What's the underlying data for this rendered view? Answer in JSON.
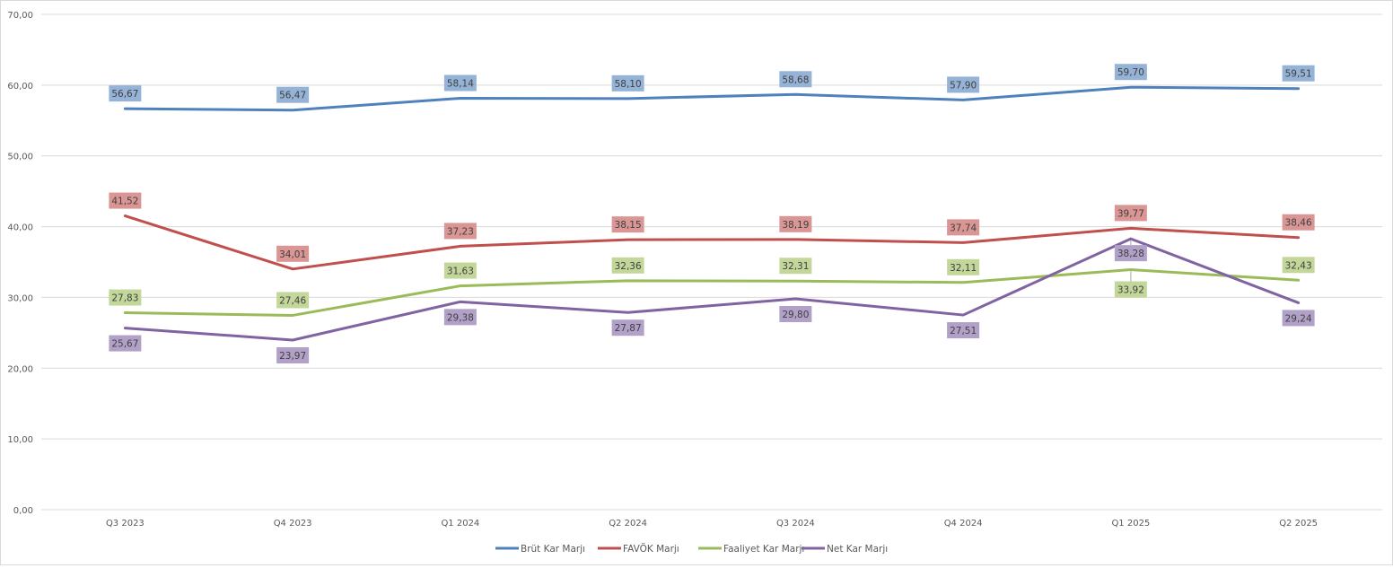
{
  "chart_data": {
    "type": "line",
    "title": "",
    "xlabel": "",
    "ylabel": "",
    "ylim": [
      0,
      70
    ],
    "yticks": [
      "0,00",
      "10,00",
      "20,00",
      "30,00",
      "40,00",
      "50,00",
      "60,00",
      "70,00"
    ],
    "grid": true,
    "legend_position": "bottom",
    "categories": [
      "Q3 2023",
      "Q4 2023",
      "Q1 2024",
      "Q2 2024",
      "Q3 2024",
      "Q4 2024",
      "Q1 2025",
      "Q2 2025"
    ],
    "series": [
      {
        "name": "Brüt Kar Marjı",
        "color": "#4f81bd",
        "label_bg": "#95b3d7",
        "values": [
          56.67,
          56.47,
          58.14,
          58.1,
          58.68,
          57.9,
          59.7,
          59.51
        ],
        "labels": [
          "56,67",
          "56,47",
          "58,14",
          "58,10",
          "58,68",
          "57,90",
          "59,70",
          "59,51"
        ]
      },
      {
        "name": "FAVÖK Marjı",
        "color": "#c0504d",
        "label_bg": "#da9694",
        "values": [
          41.52,
          34.01,
          37.23,
          38.15,
          38.19,
          37.74,
          39.77,
          38.46
        ],
        "labels": [
          "41,52",
          "34,01",
          "37,23",
          "38,15",
          "38,19",
          "37,74",
          "39,77",
          "38,46"
        ]
      },
      {
        "name": "Faaliyet Kar Marjı",
        "color": "#9bbb59",
        "label_bg": "#c4d79b",
        "values": [
          27.83,
          27.46,
          31.63,
          32.36,
          32.31,
          32.11,
          33.92,
          32.43
        ],
        "labels": [
          "27,83",
          "27,46",
          "31,63",
          "32,36",
          "32,31",
          "32,11",
          "33,92",
          "32,43"
        ]
      },
      {
        "name": "Net Kar Marjı",
        "color": "#8064a2",
        "label_bg": "#b1a0c7",
        "values": [
          25.67,
          23.97,
          29.38,
          27.87,
          29.8,
          27.51,
          38.28,
          29.24
        ],
        "labels": [
          "25,67",
          "23,97",
          "29,38",
          "27,87",
          "29,80",
          "27,51",
          "38,28",
          "29,24"
        ]
      }
    ]
  }
}
